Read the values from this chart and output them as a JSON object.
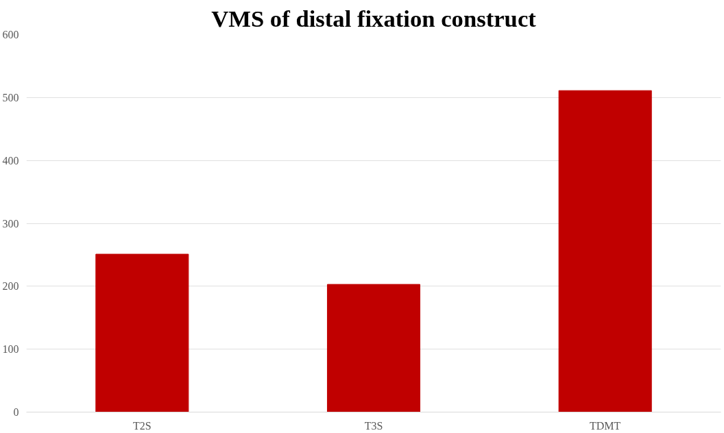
{
  "chart_data": {
    "type": "bar",
    "title": "VMS of distal fixation construct",
    "categories": [
      "T2S",
      "T3S",
      "TDMT"
    ],
    "values": [
      251,
      203,
      511
    ],
    "color": "#c00000",
    "ylim": [
      0,
      600
    ],
    "yticks": [
      0,
      100,
      200,
      300,
      400,
      500,
      600
    ],
    "grid": "y"
  }
}
